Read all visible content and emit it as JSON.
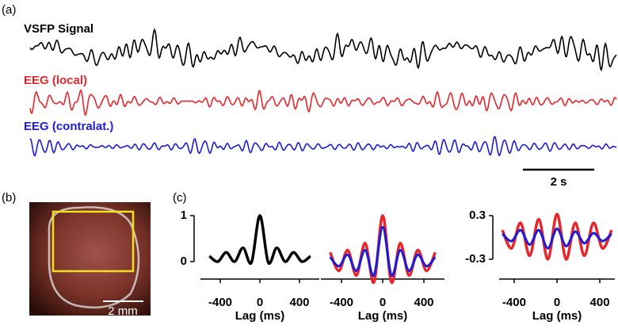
{
  "panel_a": {
    "label": "(a)",
    "traces": [
      {
        "name": "VSFP Signal",
        "color": "#000000"
      },
      {
        "name": "EEG (local)",
        "color": "#e8262a"
      },
      {
        "name": "EEG (contralat.)",
        "color": "#1c1cd8"
      }
    ],
    "scale_bar": "2 s"
  },
  "panel_b": {
    "label": "(b)",
    "scale_bar": "2 mm"
  },
  "panel_c": {
    "label": "(c)"
  },
  "chart_data": [
    {
      "type": "line",
      "x": [
        -510,
        -425,
        -340,
        -255,
        -170,
        -85,
        0,
        85,
        170,
        255,
        340,
        425,
        510
      ],
      "series": [
        {
          "color": "#000000",
          "values": [
            0.12,
            0,
            0.2,
            0,
            0.3,
            -0.02,
            1,
            -0.02,
            0.3,
            0,
            0.2,
            0,
            0.12
          ]
        }
      ],
      "xlim": [
        -600,
        600
      ],
      "xticks": [
        -400,
        0,
        400
      ],
      "ylim": [
        -0.1,
        1.05
      ],
      "yticks": [
        0,
        1
      ],
      "xlabel": "Lag (ms)"
    },
    {
      "type": "line",
      "x": [
        -510,
        -425,
        -340,
        -255,
        -170,
        -85,
        0,
        85,
        170,
        255,
        340,
        425,
        510
      ],
      "series": [
        {
          "color": "#e8262a",
          "values": [
            0.2,
            -0.2,
            0.25,
            -0.3,
            0.4,
            -0.45,
            1,
            -0.45,
            0.4,
            -0.3,
            0.25,
            -0.2,
            0.2
          ]
        },
        {
          "color": "#1c1cd8",
          "values": [
            0.1,
            -0.1,
            0.15,
            -0.2,
            0.25,
            -0.3,
            0.75,
            -0.3,
            0.25,
            -0.2,
            0.15,
            -0.1,
            0.1
          ]
        }
      ],
      "xlim": [
        -600,
        600
      ],
      "xticks": [
        -400,
        0,
        400
      ],
      "ylim": [
        -0.1,
        1.05
      ],
      "xlabel": "Lag (ms)"
    },
    {
      "type": "line",
      "x": [
        -510,
        -425,
        -340,
        -255,
        -170,
        -85,
        0,
        85,
        170,
        255,
        340,
        425,
        510
      ],
      "series": [
        {
          "color": "#e8262a",
          "values": [
            0.1,
            -0.15,
            0.2,
            -0.25,
            0.25,
            -0.3,
            0.32,
            -0.3,
            0.2,
            -0.25,
            0.2,
            -0.15,
            0.1
          ]
        },
        {
          "color": "#1c1cd8",
          "values": [
            0.05,
            -0.05,
            0.1,
            -0.1,
            0.1,
            -0.15,
            0.12,
            -0.12,
            0.08,
            -0.08,
            0.06,
            -0.05,
            0.05
          ]
        }
      ],
      "xlim": [
        -540,
        540
      ],
      "xticks": [
        -400,
        0,
        400
      ],
      "ylim": [
        -0.36,
        0.36
      ],
      "yticks": [
        -0.3,
        0.3
      ],
      "xlabel": "Lag (ms)"
    }
  ]
}
